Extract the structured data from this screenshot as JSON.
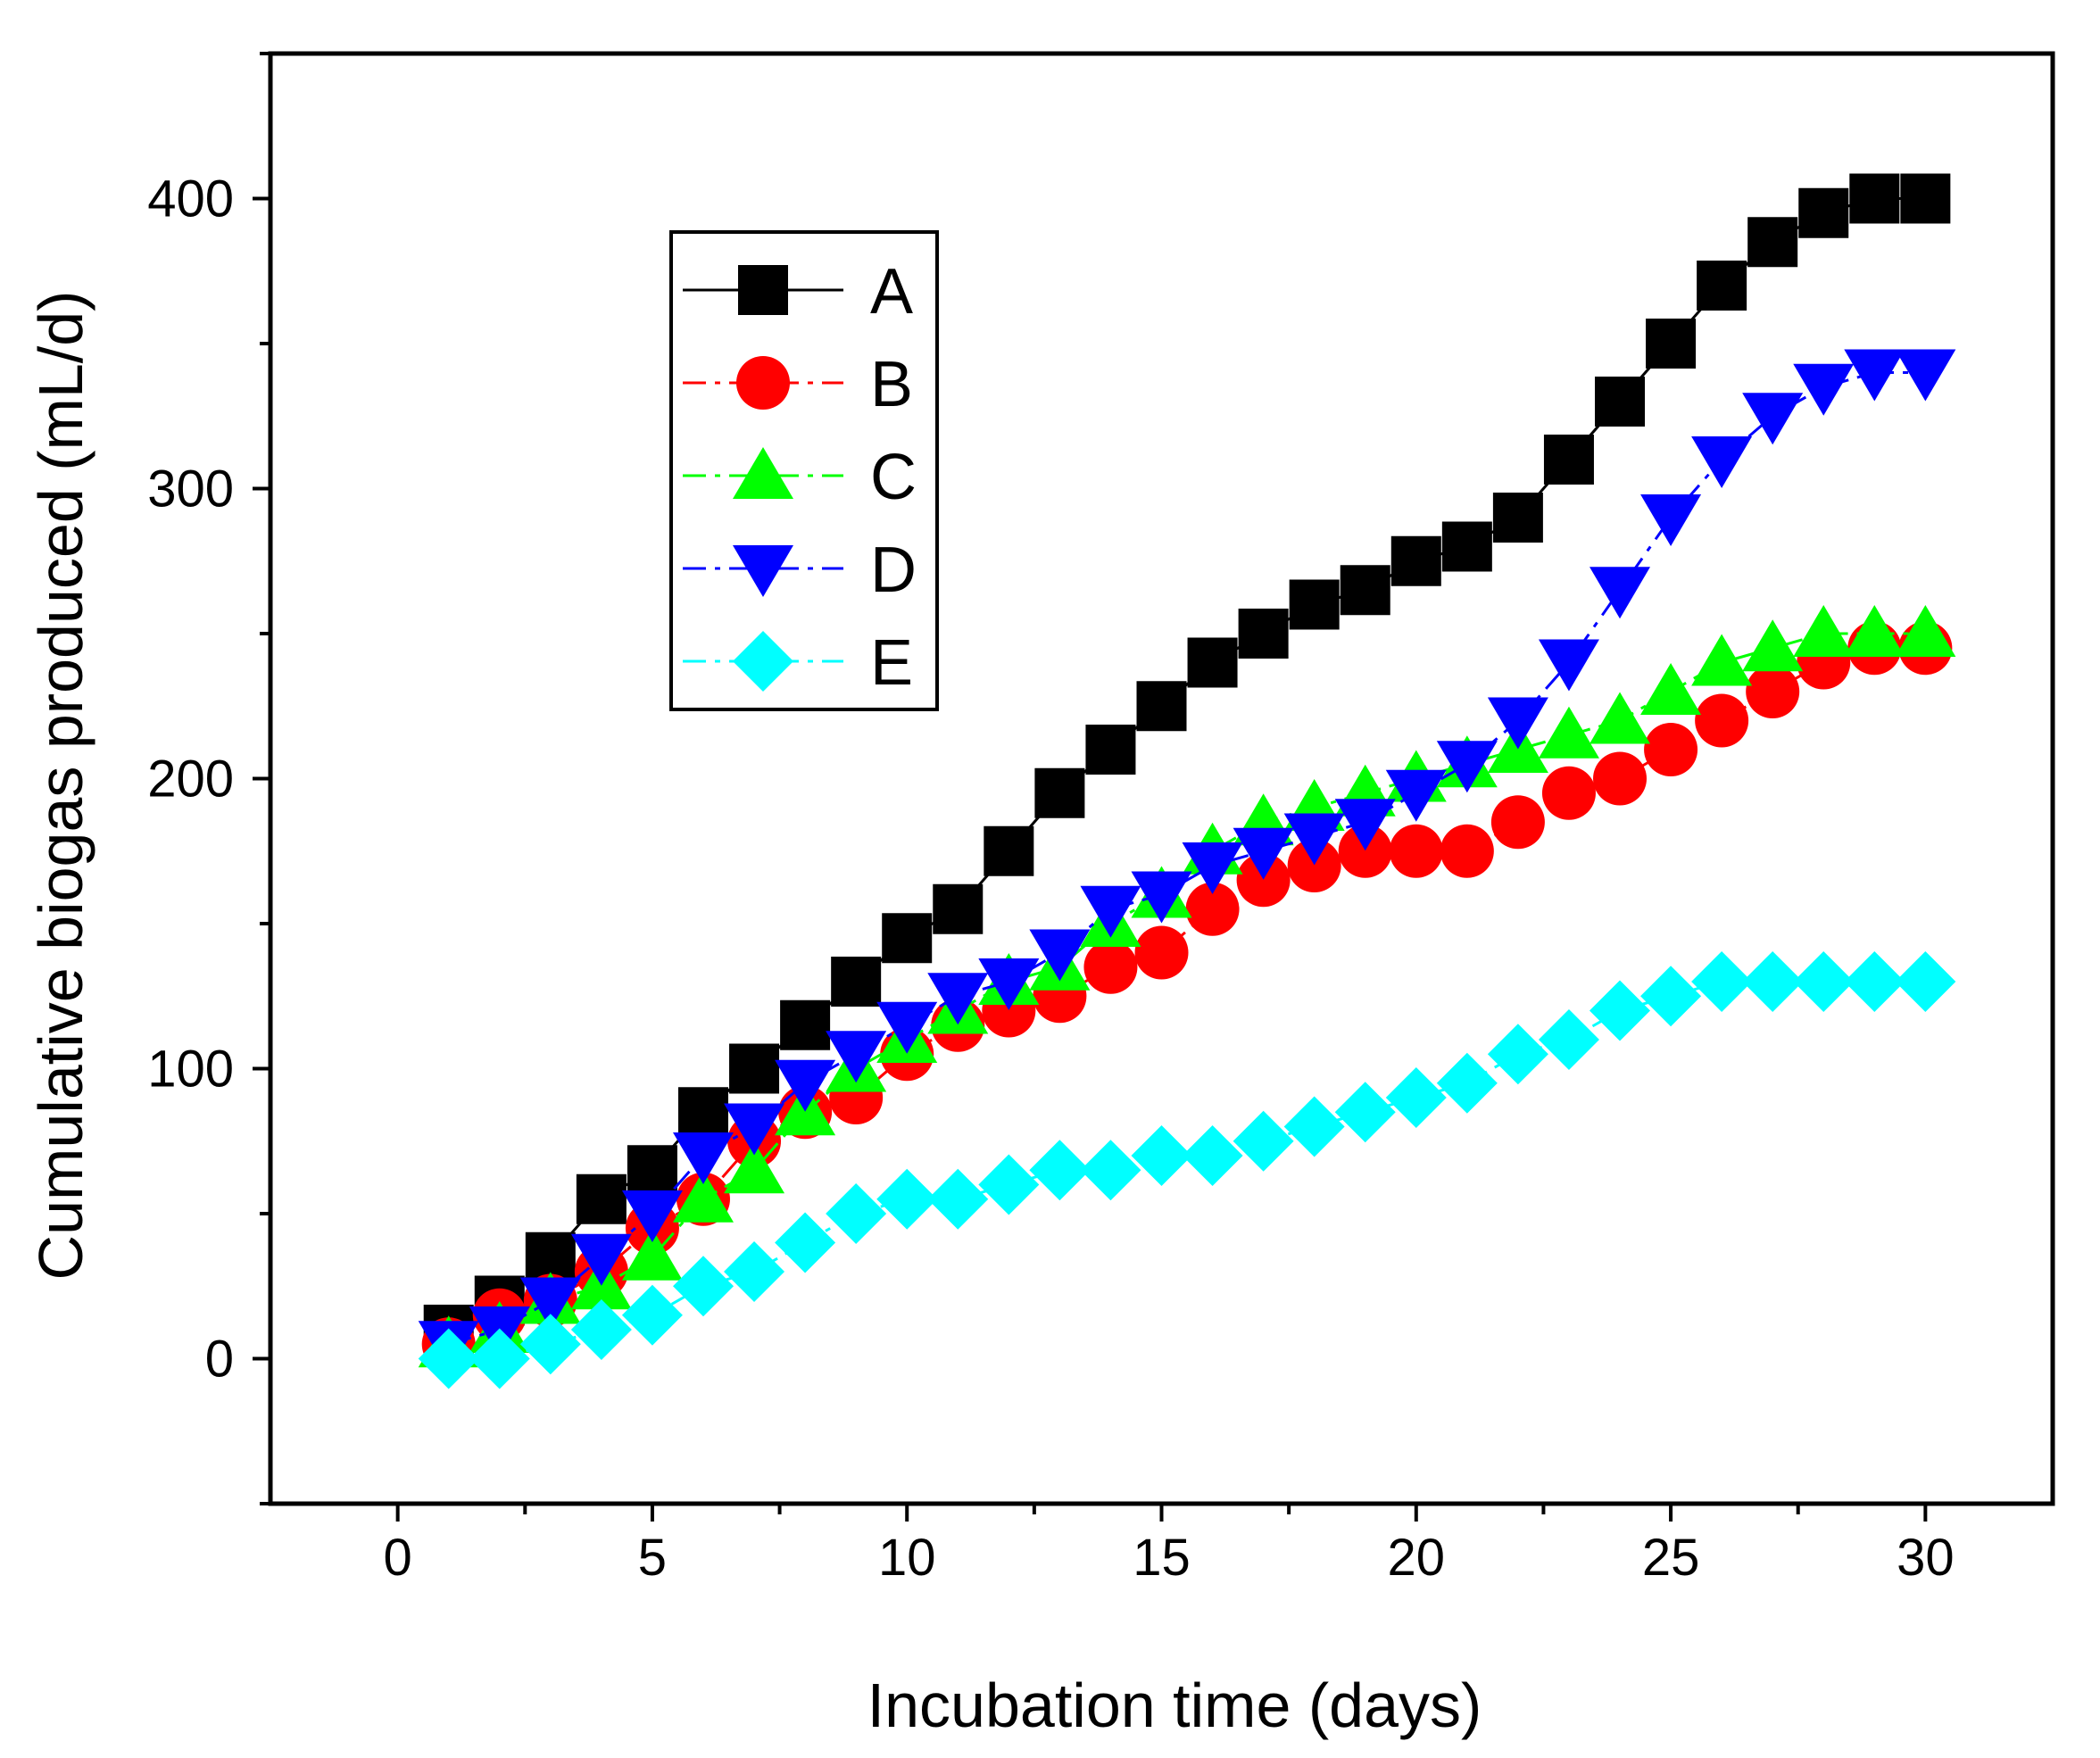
{
  "chart_data": {
    "type": "line",
    "title": "",
    "xlabel": "Incubation time (days)",
    "ylabel": "Cumulative biogas produced (mL/d)",
    "xlim": [
      -2.5,
      32.5
    ],
    "ylim": [
      -50,
      450
    ],
    "xticks": [
      0,
      5,
      10,
      15,
      20,
      25,
      30
    ],
    "yticks": [
      0,
      100,
      200,
      300,
      400
    ],
    "grid": false,
    "legend_position": "top-left",
    "x": [
      1,
      2,
      3,
      4,
      5,
      6,
      7,
      8,
      9,
      10,
      11,
      12,
      13,
      14,
      15,
      16,
      17,
      18,
      19,
      20,
      21,
      22,
      23,
      24,
      25,
      26,
      27,
      28,
      29,
      30
    ],
    "series": [
      {
        "name": "A",
        "color": "#000000",
        "marker": "square",
        "line_style": "solid",
        "values": [
          10,
          20,
          35,
          55,
          65,
          85,
          100,
          115,
          130,
          145,
          155,
          175,
          195,
          210,
          225,
          240,
          250,
          260,
          265,
          275,
          280,
          290,
          310,
          330,
          350,
          370,
          385,
          395,
          400,
          400
        ]
      },
      {
        "name": "B",
        "color": "#ff0000",
        "marker": "circle",
        "line_style": "dashdot",
        "values": [
          5,
          15,
          20,
          30,
          45,
          55,
          75,
          85,
          90,
          105,
          115,
          120,
          125,
          135,
          140,
          155,
          165,
          170,
          175,
          175,
          175,
          185,
          195,
          200,
          210,
          220,
          230,
          240,
          245,
          245
        ]
      },
      {
        "name": "C",
        "color": "#00ff00",
        "marker": "triangle-up",
        "line_style": "dashdot",
        "values": [
          5,
          10,
          20,
          25,
          35,
          55,
          65,
          85,
          100,
          110,
          120,
          130,
          135,
          150,
          160,
          175,
          185,
          190,
          195,
          200,
          205,
          210,
          215,
          220,
          230,
          240,
          245,
          250,
          250,
          250
        ]
      },
      {
        "name": "D",
        "color": "#0000ff",
        "marker": "triangle-down",
        "line_style": "dashdot",
        "values": [
          5,
          10,
          20,
          35,
          50,
          70,
          80,
          95,
          105,
          115,
          125,
          130,
          140,
          155,
          160,
          170,
          175,
          180,
          185,
          195,
          205,
          220,
          240,
          265,
          290,
          310,
          325,
          335,
          340,
          340
        ]
      },
      {
        "name": "E",
        "color": "#00ffff",
        "marker": "diamond",
        "line_style": "dashdot",
        "values": [
          0,
          0,
          5,
          10,
          15,
          25,
          30,
          40,
          50,
          55,
          55,
          60,
          65,
          65,
          70,
          70,
          75,
          80,
          85,
          90,
          95,
          105,
          110,
          120,
          125,
          130,
          130,
          130,
          130,
          130
        ]
      }
    ]
  }
}
